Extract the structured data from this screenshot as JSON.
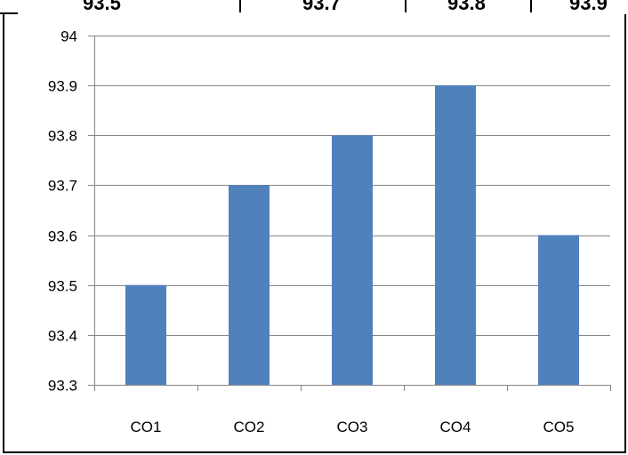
{
  "header_cells": [
    "93.5",
    "93.7",
    "93.8",
    "93.9"
  ],
  "chart_data": {
    "type": "bar",
    "categories": [
      "CO1",
      "CO2",
      "CO3",
      "CO4",
      "CO5"
    ],
    "values": [
      93.5,
      93.7,
      93.8,
      93.9,
      93.6
    ],
    "ylim": [
      93.3,
      94
    ],
    "yticks": [
      "93.3",
      "93.4",
      "93.5",
      "93.6",
      "93.7",
      "93.8",
      "93.9",
      "94"
    ],
    "grid": true,
    "legend": "none",
    "bar_color": "#4F81BD",
    "grid_color": "#868686"
  }
}
